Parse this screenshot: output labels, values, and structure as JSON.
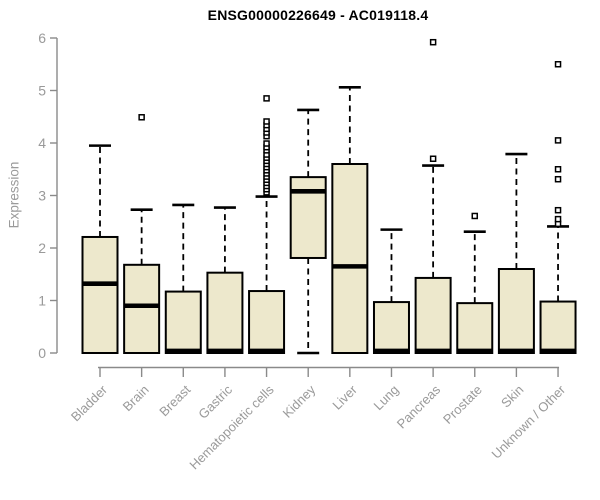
{
  "header": {
    "title": "ENSG00000226649 - AC019118.4"
  },
  "chart_data": {
    "type": "boxplot",
    "title": "ENSG00000226649 - AC019118.4",
    "xlabel": "",
    "ylabel": "Expression",
    "ylim": [
      0,
      6
    ],
    "yticks": [
      0,
      1,
      2,
      3,
      4,
      5,
      6
    ],
    "grid": false,
    "legend": null,
    "categories": [
      "Bladder",
      "Brain",
      "Breast",
      "Gastric",
      "Hematopoietic cells",
      "Kidney",
      "Liver",
      "Lung",
      "Pancreas",
      "Prostate",
      "Skin",
      "Unknown / Other"
    ],
    "series": [
      {
        "category": "Bladder",
        "whisker_low": 0,
        "q1": 0,
        "median": 1.32,
        "q3": 2.21,
        "whisker_high": 3.95,
        "outliers": []
      },
      {
        "category": "Brain",
        "whisker_low": 0,
        "q1": 0,
        "median": 0.9,
        "q3": 1.68,
        "whisker_high": 2.73,
        "outliers": [
          4.49
        ]
      },
      {
        "category": "Breast",
        "whisker_low": 0,
        "q1": 0,
        "median": 0.04,
        "q3": 1.17,
        "whisker_high": 2.82,
        "outliers": []
      },
      {
        "category": "Gastric",
        "whisker_low": 0,
        "q1": 0,
        "median": 0.04,
        "q3": 1.53,
        "whisker_high": 2.77,
        "outliers": []
      },
      {
        "category": "Hematopoietic cells",
        "whisker_low": 0,
        "q1": 0,
        "median": 0.04,
        "q3": 1.18,
        "whisker_high": 2.98,
        "outliers": [
          3.06,
          3.12,
          3.18,
          3.24,
          3.3,
          3.36,
          3.42,
          3.48,
          3.54,
          3.6,
          3.66,
          3.72,
          3.78,
          3.86,
          3.92,
          3.99,
          4.13,
          4.2,
          4.27,
          4.34,
          4.41,
          4.85
        ]
      },
      {
        "category": "Kidney",
        "whisker_low": 0,
        "q1": 1.81,
        "median": 3.08,
        "q3": 3.35,
        "whisker_high": 4.63,
        "outliers": []
      },
      {
        "category": "Liver",
        "whisker_low": 0,
        "q1": 0,
        "median": 1.65,
        "q3": 3.6,
        "whisker_high": 5.06,
        "outliers": []
      },
      {
        "category": "Lung",
        "whisker_low": 0,
        "q1": 0,
        "median": 0.04,
        "q3": 0.97,
        "whisker_high": 2.35,
        "outliers": []
      },
      {
        "category": "Pancreas",
        "whisker_low": 0,
        "q1": 0,
        "median": 0.04,
        "q3": 1.43,
        "whisker_high": 3.57,
        "outliers": [
          3.7,
          5.92
        ]
      },
      {
        "category": "Prostate",
        "whisker_low": 0,
        "q1": 0,
        "median": 0.04,
        "q3": 0.95,
        "whisker_high": 2.31,
        "outliers": [
          2.61
        ]
      },
      {
        "category": "Skin",
        "whisker_low": 0,
        "q1": 0,
        "median": 0.04,
        "q3": 1.6,
        "whisker_high": 3.79,
        "outliers": []
      },
      {
        "category": "Unknown / Other",
        "whisker_low": 0,
        "q1": 0,
        "median": 0.04,
        "q3": 0.98,
        "whisker_high": 2.41,
        "outliers": [
          2.46,
          2.55,
          2.72,
          3.31,
          3.5,
          4.05,
          5.5
        ]
      }
    ]
  },
  "colors": {
    "box_fill": "#EDE8CC",
    "box_stroke": "#000000",
    "median": "#000000",
    "whisker": "#000000",
    "outlier_stroke": "#000000",
    "outlier_fill": "#FFFFFF",
    "axis": "#8A8A8A",
    "tick_label": "#9A9A9A",
    "axis_label": "#9A9A9A",
    "title": "#000000",
    "background": "#FFFFFF"
  }
}
